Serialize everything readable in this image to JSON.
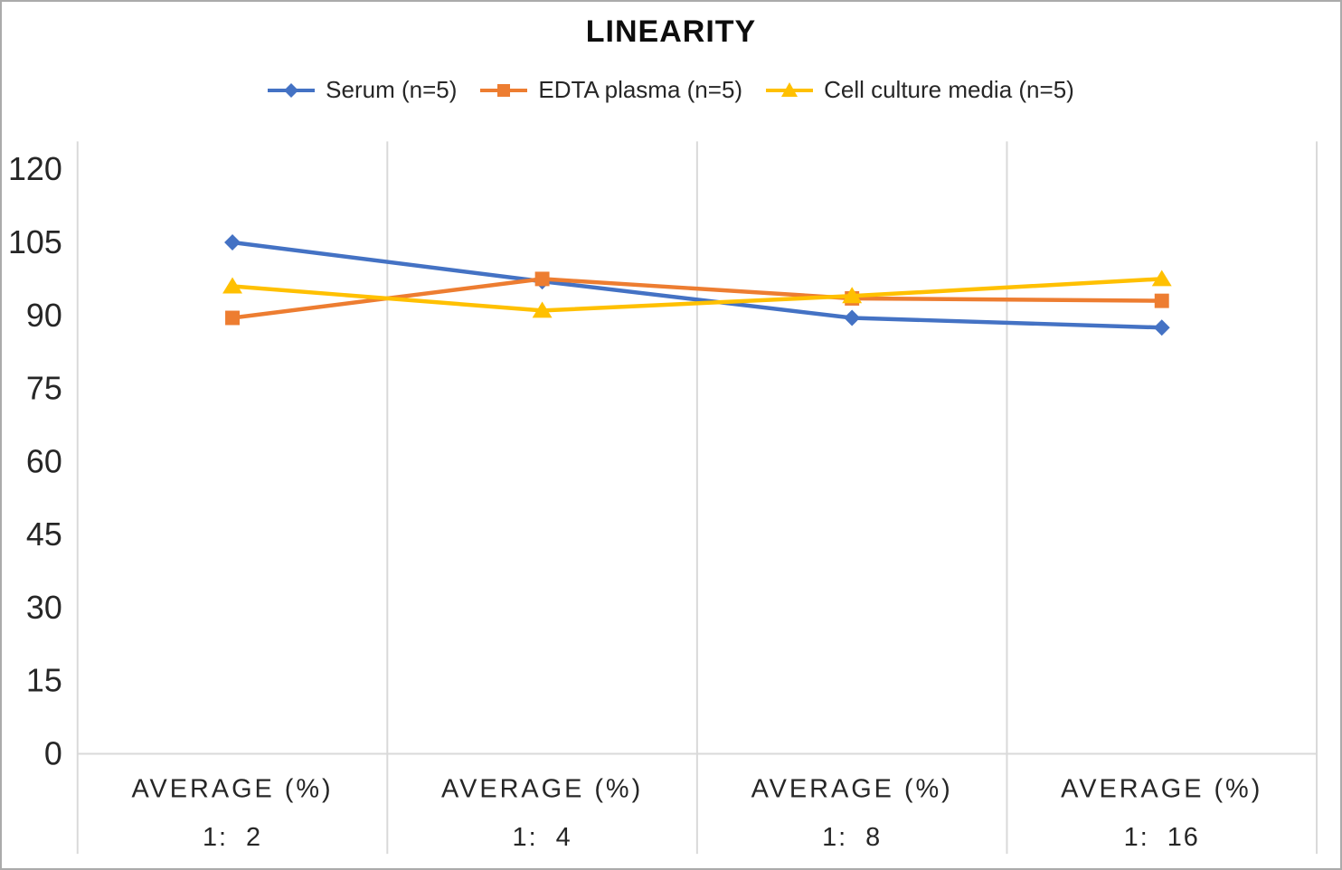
{
  "chart_data": {
    "type": "line",
    "title": "LINEARITY",
    "x_axis": {
      "group_label": "AVERAGE (%)",
      "categories": [
        "1:  2",
        "1:  4",
        "1:  8",
        "1:  16"
      ]
    },
    "y_axis": {
      "ticks": [
        0,
        15,
        30,
        45,
        60,
        75,
        90,
        105,
        120
      ],
      "min": 0,
      "max": 120
    },
    "series": [
      {
        "name": "Serum (n=5)",
        "marker": "diamond",
        "color": "#4472C4",
        "values": [
          105,
          97,
          89.5,
          87.5
        ]
      },
      {
        "name": "EDTA plasma (n=5)",
        "marker": "square",
        "color": "#ED7D31",
        "values": [
          89.5,
          97.5,
          93.5,
          93
        ]
      },
      {
        "name": "Cell culture media (n=5)",
        "marker": "triangle",
        "color": "#FFC000",
        "values": [
          96,
          91,
          94,
          97.5
        ]
      }
    ],
    "grid": "vertical-category-separators-only",
    "legend_position": "top",
    "colors": {
      "grid": "#D9D9D9",
      "text": "#262626",
      "border": "#ABABAB"
    }
  }
}
